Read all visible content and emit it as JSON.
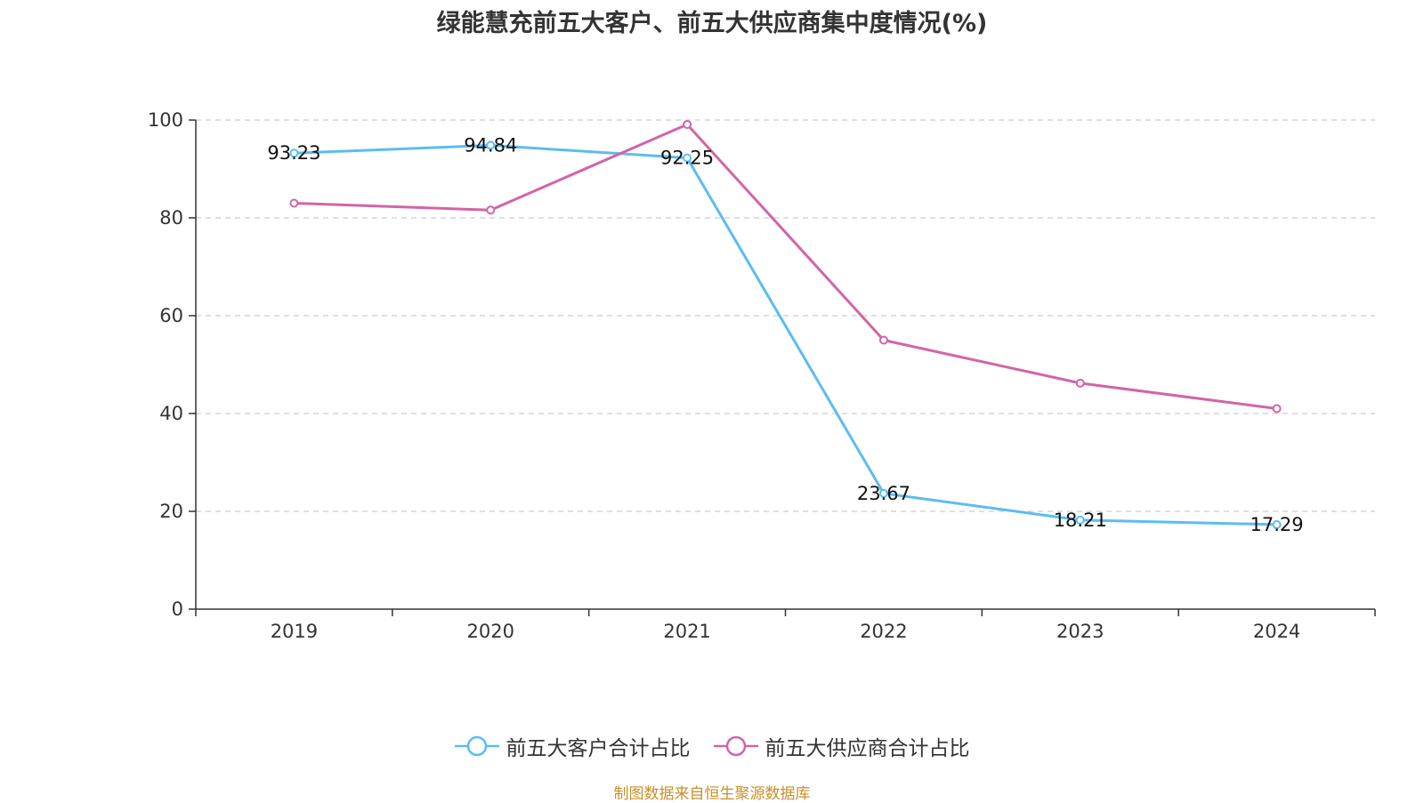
{
  "chart_data": {
    "type": "line",
    "title": "绿能慧充前五大客户、前五大供应商集中度情况(%)",
    "categories": [
      "2019",
      "2020",
      "2021",
      "2022",
      "2023",
      "2024"
    ],
    "series": [
      {
        "name": "前五大客户合计占比",
        "color": "#5bbdf0",
        "values": [
          93.23,
          94.84,
          92.25,
          23.67,
          18.21,
          17.29
        ],
        "labels": [
          "93.23",
          "94.84",
          "92.25",
          "23.67",
          "18.21",
          "17.29"
        ]
      },
      {
        "name": "前五大供应商合计占比",
        "color": "#d264a8",
        "values": [
          83.0,
          81.6,
          99.1,
          55.0,
          46.2,
          41.0
        ],
        "labels": []
      }
    ],
    "ylim": [
      0,
      100
    ],
    "yticks": [
      0,
      20,
      40,
      60,
      80,
      100
    ],
    "ytick_labels": [
      "0",
      "20",
      "40",
      "60",
      "80",
      "100"
    ],
    "grid": true,
    "legend_position": "bottom",
    "xlabel": "",
    "ylabel": ""
  },
  "source_text": "制图数据来自恒生聚源数据库"
}
